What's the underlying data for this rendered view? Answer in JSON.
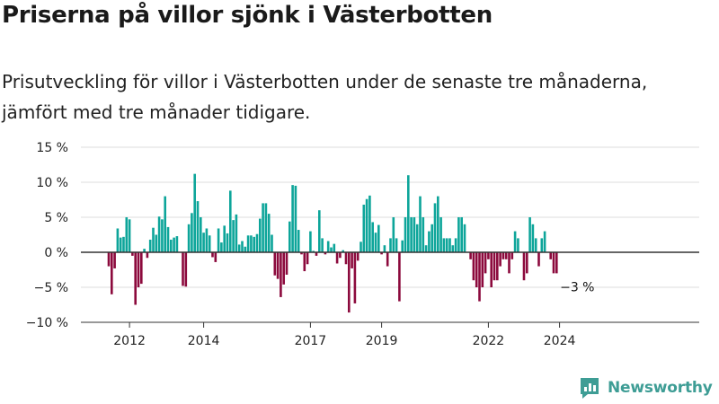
{
  "title": "Priserna på villor sjönk i Västerbotten",
  "subtitle": "Prisutveckling för villor i Västerbotten under de senaste tre månaderna, jämfört med tre månader tidigare.",
  "brand": {
    "name": "Newsworthy",
    "color": "#3e9d95"
  },
  "chart_data": {
    "type": "bar",
    "title": "Priserna på villor sjönk i Västerbotten",
    "ylabel": "",
    "ylim": [
      -10,
      15
    ],
    "yticks": [
      15,
      10,
      5,
      0,
      -5,
      -10
    ],
    "ytick_labels": [
      "15 %",
      "10 %",
      "5 %",
      "0 %",
      "−5 %",
      "−10 %"
    ],
    "xticks": [
      {
        "label": "2012",
        "index": 7
      },
      {
        "label": "2014",
        "index": 32
      },
      {
        "label": "2017",
        "index": 68
      },
      {
        "label": "2019",
        "index": 92
      },
      {
        "label": "2022",
        "index": 128
      },
      {
        "label": "2024",
        "index": 152
      }
    ],
    "colors": {
      "positive": "#0da59a",
      "negative": "#8c0a3d",
      "grid": "#dddddd",
      "axis": "#333333"
    },
    "last_label": "−3 %",
    "series": [
      {
        "values": [
          -2,
          -6,
          -2.3,
          3.4,
          2.1,
          2.2,
          5,
          4.7,
          -0.5,
          -7.5,
          -5,
          -4.5,
          0.5,
          -0.8,
          1.8,
          3.5,
          2.5,
          5.1,
          4.7,
          8,
          3.6,
          1.8,
          2.1,
          2.3,
          0,
          -4.8,
          -4.9,
          4,
          5.6,
          11.2,
          7.3,
          5,
          2.8,
          3.4,
          2.4,
          -0.7,
          -1.4,
          3.4,
          1.4,
          3.8,
          2.7,
          8.8,
          4.6,
          5.4,
          1.1,
          1.6,
          0.8,
          2.4,
          2.4,
          2.2,
          2.6,
          4.8,
          7,
          7,
          5.5,
          2.5,
          -3.3,
          -3.8,
          -6.4,
          -4.6,
          -3.2,
          4.4,
          9.6,
          9.5,
          3.2,
          -0.3,
          -2.7,
          -1.7,
          3,
          0.2,
          -0.5,
          6,
          2,
          -0.3,
          1.6,
          0.7,
          1.2,
          -1.6,
          -0.8,
          0.3,
          -1.7,
          -8.6,
          -2.3,
          -7.3,
          -1.2,
          1.5,
          6.8,
          7.6,
          8.1,
          4.3,
          2.8,
          3.9,
          -0.3,
          1,
          -2,
          2,
          5,
          2,
          -7,
          1.7,
          5,
          11,
          5,
          5,
          4,
          8,
          5,
          1,
          3,
          4,
          7,
          8,
          5,
          2,
          2,
          2,
          1,
          2,
          5,
          5,
          4,
          0,
          -1,
          -4,
          -5,
          -7,
          -5,
          -3,
          -1,
          -5,
          -4,
          -4,
          -2,
          -1,
          -1,
          -3,
          -1,
          3,
          2,
          0,
          -4,
          -3,
          5,
          4,
          2,
          -2,
          2,
          3,
          0,
          -1,
          -3,
          -3
        ]
      }
    ]
  }
}
